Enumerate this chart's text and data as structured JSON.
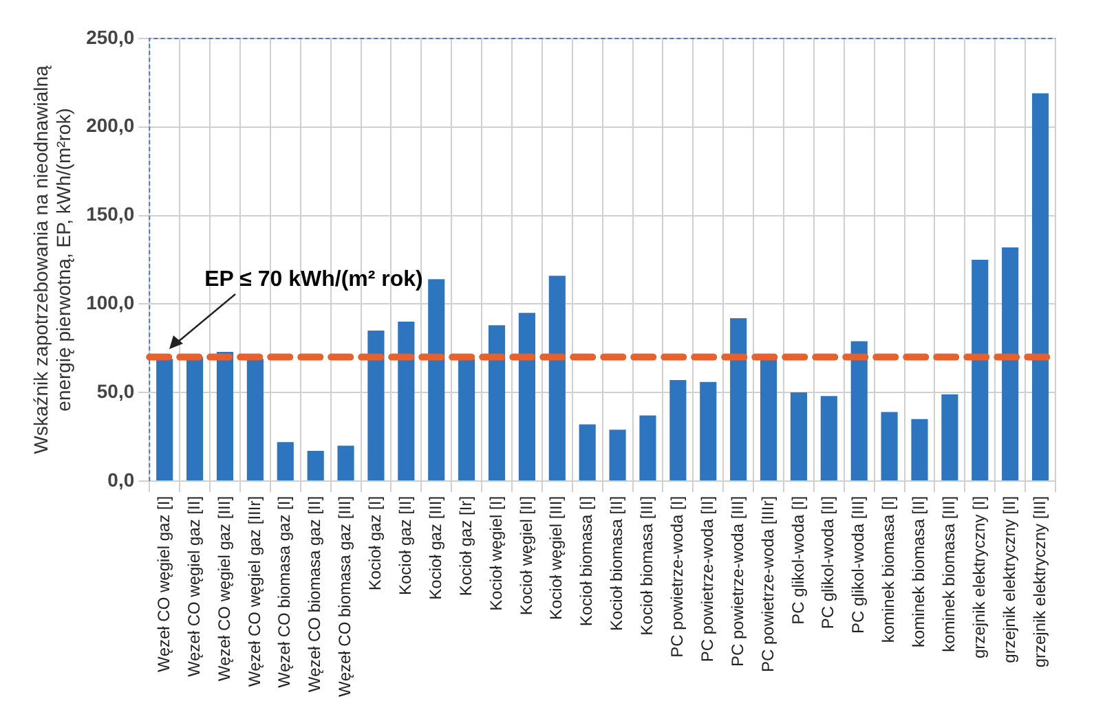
{
  "chart_data": {
    "type": "bar",
    "ylabel": "Wskaźnik zapotrzebowania na nieodnawialną energię pierwotną, EP, kWh/(m²rok)",
    "categories": [
      "Węzeł CO węgiel gaz [I]",
      "Węzeł CO węgiel gaz [II]",
      "Węzeł CO węgiel gaz [III]",
      "Węzeł CO węgiel gaz [IIIr]",
      "Węzeł CO biomasa gaz [I]",
      "Węzeł CO biomasa gaz [II]",
      "Węzeł CO biomasa gaz [III]",
      "Kocioł gaz [I]",
      "Kocioł gaz [II]",
      "Kocioł gaz [III]",
      "Kocioł gaz [Ir]",
      "Kocioł węgiel [I]",
      "Kocioł węgiel [II]",
      "Kocioł węgiel [III]",
      "Kocioł biomasa [I]",
      "Kocioł biomasa [II]",
      "Kocioł biomasa [III]",
      "PC powietrze-woda [I]",
      "PC powietrze-woda [II]",
      "PC powietrze-woda [III]",
      "PC powietrze-woda [IIIr]",
      "PC glikol-woda [I]",
      "PC glikol-woda [II]",
      "PC glikol-woda [III]",
      "kominek biomasa [I]",
      "kominek biomasa [II]",
      "kominek biomasa [III]",
      "grzejnik elektryczny [I]",
      "grzejnik elektryczny [II]",
      "grzejnik elektryczny [III]"
    ],
    "values": [
      69,
      70,
      73,
      69,
      22,
      17,
      20,
      85,
      90,
      114,
      69,
      88,
      95,
      116,
      32,
      29,
      37,
      57,
      56,
      92,
      69,
      50,
      48,
      79,
      39,
      35,
      49,
      125,
      132,
      219
    ],
    "color": "#2e75c0",
    "ylim": [
      0,
      250
    ],
    "yticks": [
      {
        "value": 0,
        "label": "0,0"
      },
      {
        "value": 50,
        "label": "50,0"
      },
      {
        "value": 100,
        "label": "100,0"
      },
      {
        "value": 150,
        "label": "150,0"
      },
      {
        "value": 200,
        "label": "200,0"
      },
      {
        "value": 250,
        "label": "250,0"
      }
    ],
    "grid": true,
    "ref_lines": [
      {
        "axis": "y",
        "value": 70,
        "label": "EP ≤ 70 kWh/(m² rok)",
        "color": "#e8602c",
        "line_style": "dashed"
      }
    ]
  }
}
